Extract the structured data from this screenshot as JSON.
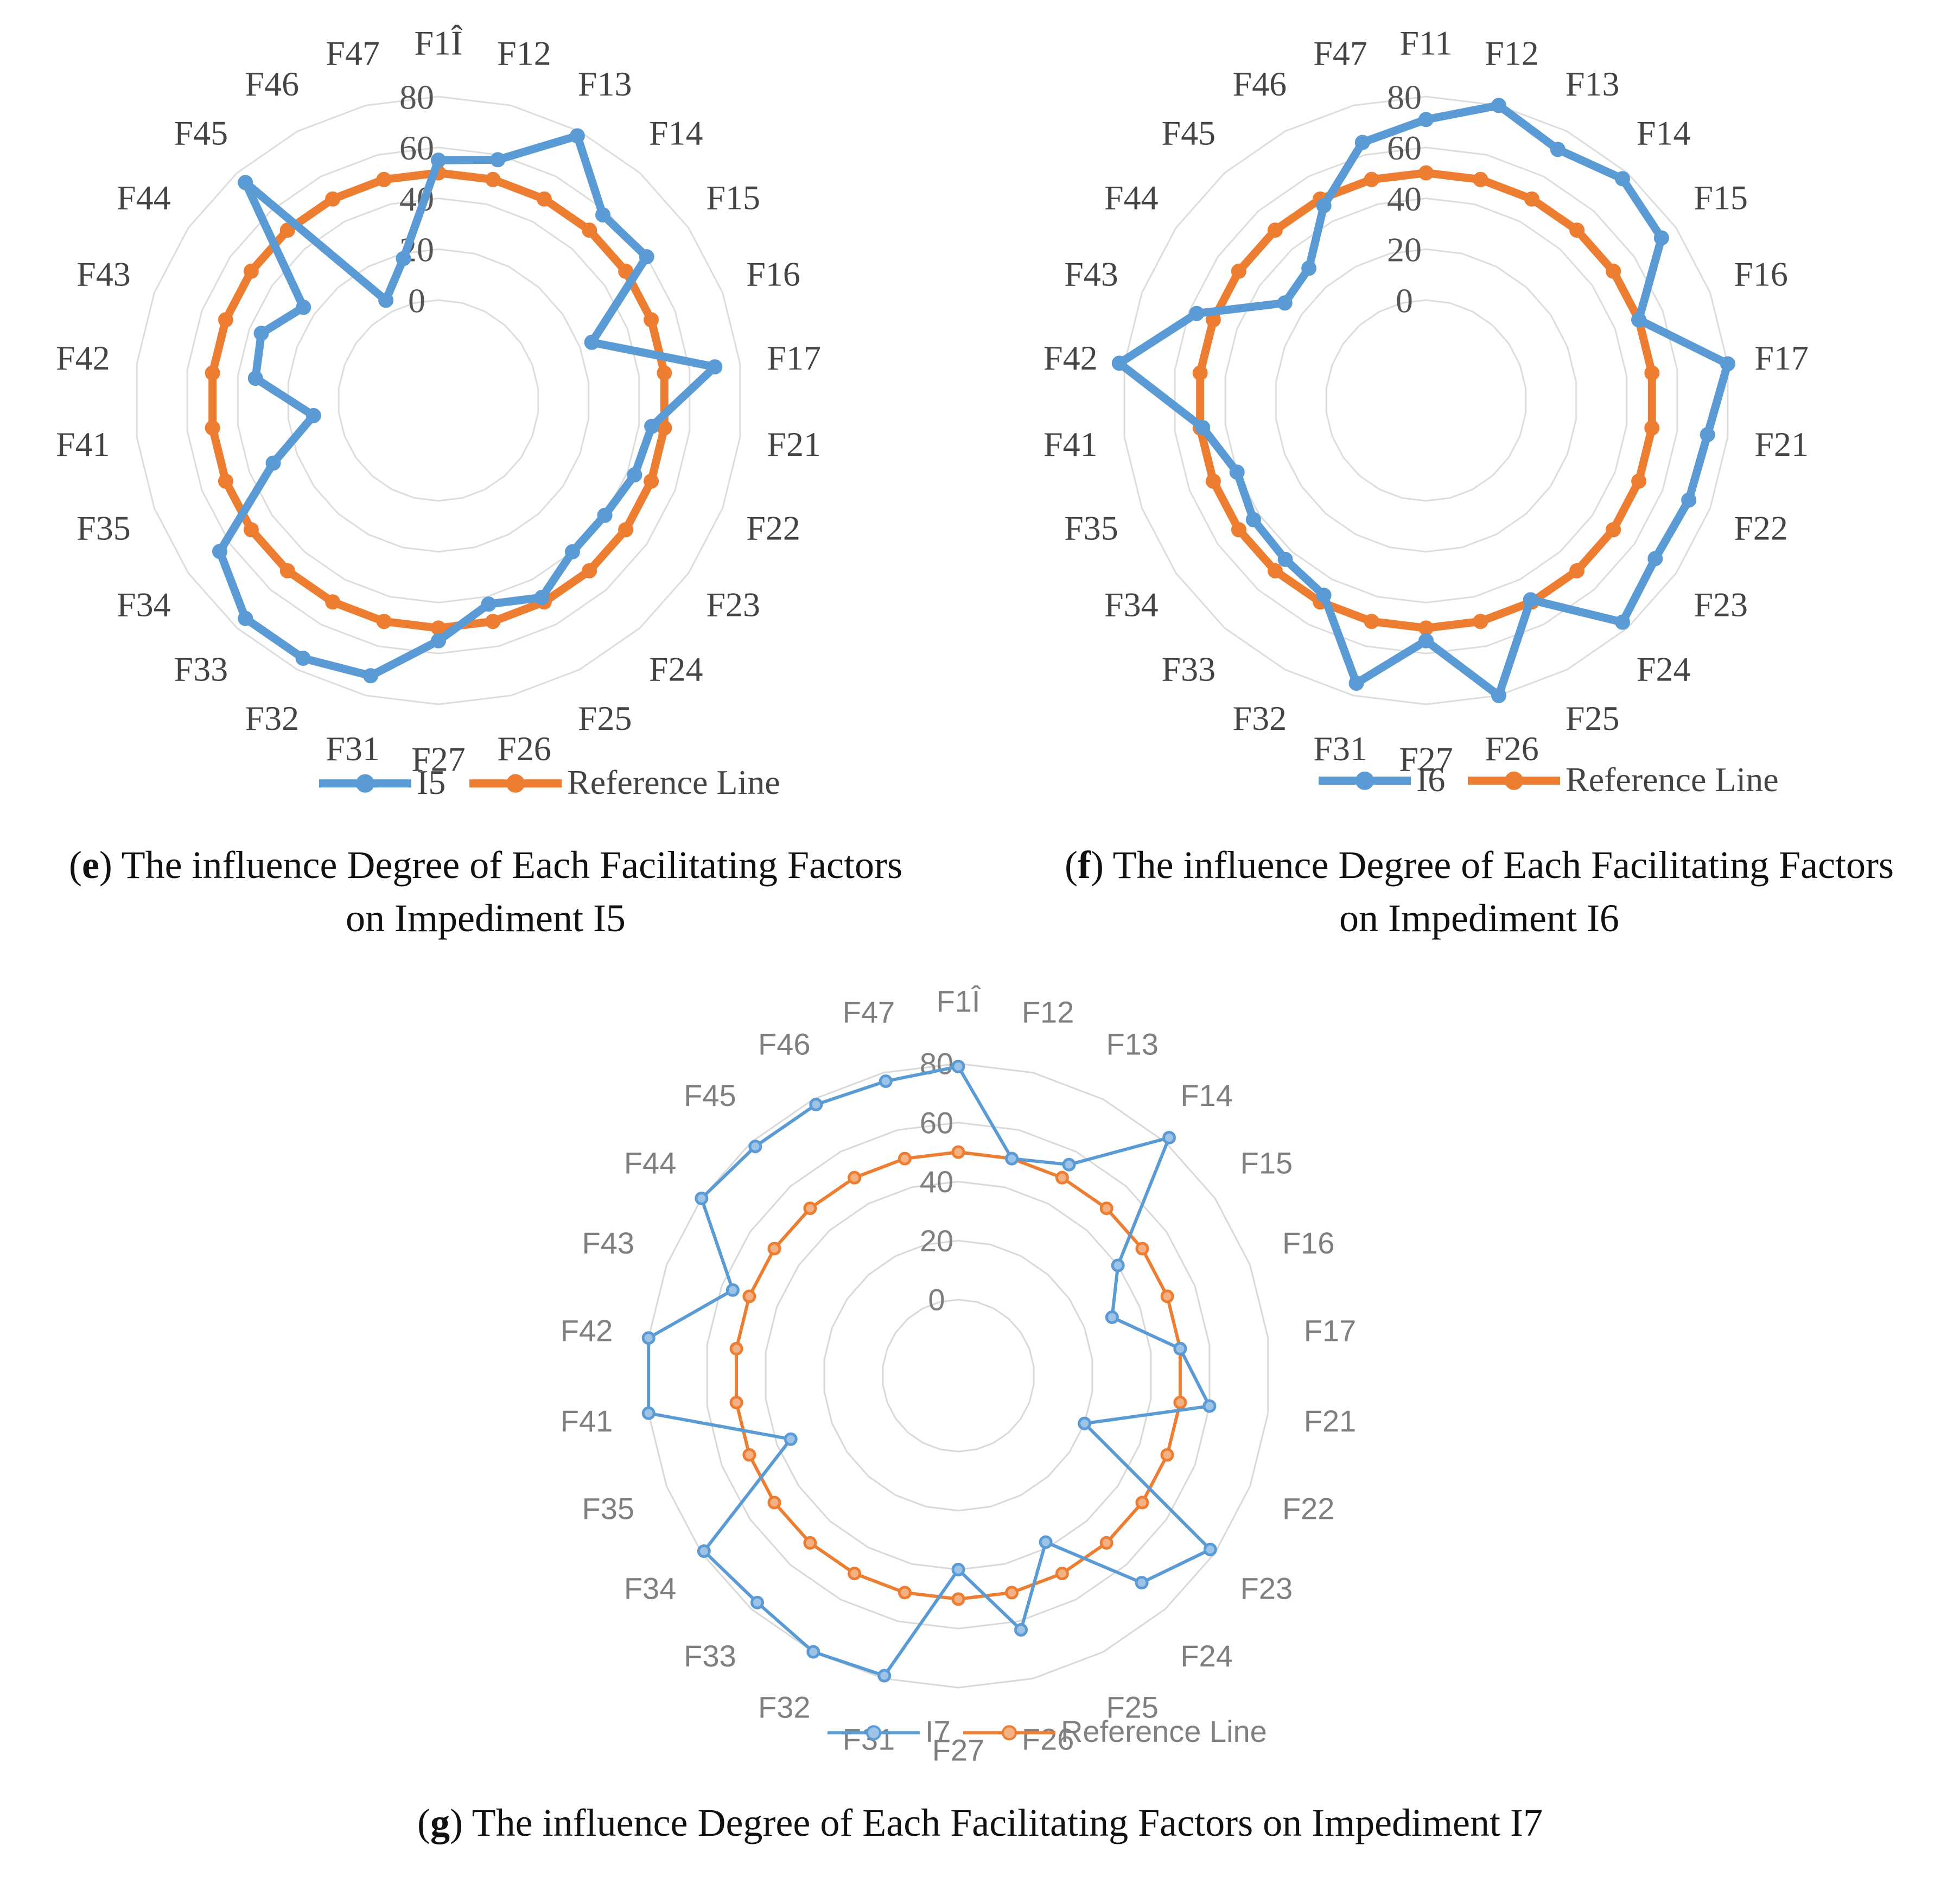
{
  "charts": [
    {
      "id": "e",
      "type": "radar",
      "categories": [
        "F1Î",
        "F12",
        "F13",
        "F14",
        "F15",
        "F16",
        "F17",
        "F21",
        "F22",
        "F23",
        "F24",
        "F25",
        "F26",
        "F27",
        "F31",
        "F32",
        "F33",
        "F34",
        "F35",
        "F41",
        "F42",
        "F43",
        "F44",
        "F45",
        "F46",
        "F47"
      ],
      "rticks": [
        "0",
        "20",
        "40",
        "60",
        "80"
      ],
      "rmax": 80,
      "series": [
        {
          "name": "I5",
          "color": "#5b9bd5",
          "values": [
            55,
            58,
            78,
            58,
            60,
            25,
            70,
            45,
            43,
            40,
            40,
            48,
            43,
            55,
            72,
            75,
            75,
            65,
            30,
            10,
            33,
            35,
            25,
            75,
            5,
            18
          ]
        },
        {
          "name": "Reference Line",
          "color": "#ed7d31",
          "values": [
            50,
            50,
            50,
            50,
            50,
            50,
            50,
            50,
            50,
            50,
            50,
            50,
            50,
            50,
            50,
            50,
            50,
            50,
            50,
            50,
            50,
            50,
            50,
            50,
            50,
            50
          ]
        }
      ],
      "caption": {
        "letter": "e",
        "line1": " The influence Degree of Each Facilitating Factors",
        "line2": "on Impediment I5"
      }
    },
    {
      "id": "f",
      "type": "radar",
      "categories": [
        "F11",
        "F12",
        "F13",
        "F14",
        "F15",
        "F16",
        "F17",
        "F21",
        "F22",
        "F23",
        "F24",
        "F25",
        "F26",
        "F27",
        "F31",
        "F32",
        "F33",
        "F34",
        "F35",
        "F41",
        "F42",
        "F43",
        "F44",
        "F45",
        "F46",
        "F47"
      ],
      "rticks": [
        "0",
        "20",
        "40",
        "60",
        "80"
      ],
      "rmax": 80,
      "series": [
        {
          "name": "I6",
          "color": "#5b9bd5",
          "values": [
            71,
            80,
            72,
            77,
            73,
            50,
            80,
            72,
            71,
            70,
            77,
            49,
            80,
            55,
            75,
            47,
            44,
            43,
            40,
            49,
            82,
            57,
            28,
            30,
            47,
            65
          ]
        },
        {
          "name": "Reference Line",
          "color": "#ed7d31",
          "values": [
            50,
            50,
            50,
            50,
            50,
            50,
            50,
            50,
            50,
            50,
            50,
            50,
            50,
            50,
            50,
            50,
            50,
            50,
            50,
            50,
            50,
            50,
            50,
            50,
            50,
            50
          ]
        }
      ],
      "caption": {
        "letter": "f",
        "line1": " The influence Degree of Each Facilitating Factors",
        "line2": "on Impediment I6"
      }
    },
    {
      "id": "g",
      "type": "radar",
      "categories": [
        "F1Î",
        "F12",
        "F13",
        "F14",
        "F15",
        "F16",
        "F17",
        "F21",
        "F22",
        "F23",
        "F24",
        "F25",
        "F26",
        "F27",
        "F31",
        "F32",
        "F33",
        "F34",
        "F35",
        "F41",
        "F42",
        "F43",
        "F44",
        "F45",
        "F46",
        "F47"
      ],
      "rticks": [
        "0",
        "20",
        "40",
        "60",
        "80"
      ],
      "rmax": 80,
      "series": [
        {
          "name": "I7",
          "color": "#5b9bd5",
          "values": [
            79,
            50,
            55,
            82,
            40,
            30,
            50,
            60,
            20,
            78,
            68,
            38,
            63,
            40,
            79,
            80,
            77,
            79,
            35,
            80,
            80,
            56,
            80,
            78,
            78,
            77
          ]
        },
        {
          "name": "Reference Line",
          "color": "#ed7d31",
          "values": [
            50,
            50,
            50,
            50,
            50,
            50,
            50,
            50,
            50,
            50,
            50,
            50,
            50,
            50,
            50,
            50,
            50,
            50,
            50,
            50,
            50,
            50,
            50,
            50,
            50,
            50
          ]
        }
      ],
      "caption": {
        "letter": "g",
        "line1": " The influence Degree of Each Facilitating Factors on Impediment I7",
        "line2": ""
      }
    }
  ]
}
